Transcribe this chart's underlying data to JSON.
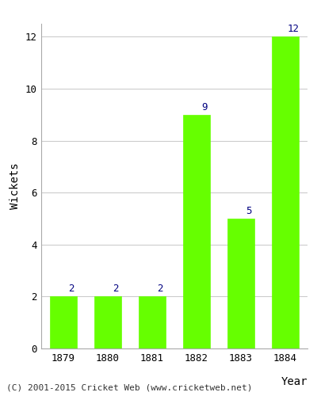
{
  "years": [
    "1879",
    "1880",
    "1881",
    "1882",
    "1883",
    "1884"
  ],
  "values": [
    2,
    2,
    2,
    9,
    5,
    12
  ],
  "bar_color": "#66ff00",
  "bar_edgecolor": "#66ff00",
  "label_color": "#000080",
  "ylabel": "Wickets",
  "xlabel": "Year",
  "ylim": [
    0,
    12.5
  ],
  "yticks": [
    0,
    2,
    4,
    6,
    8,
    10,
    12
  ],
  "grid_color": "#cccccc",
  "background_color": "#ffffff",
  "footnote": "(C) 2001-2015 Cricket Web (www.cricketweb.net)",
  "label_fontsize": 9,
  "axis_label_fontsize": 10,
  "tick_fontsize": 9,
  "footnote_fontsize": 8
}
